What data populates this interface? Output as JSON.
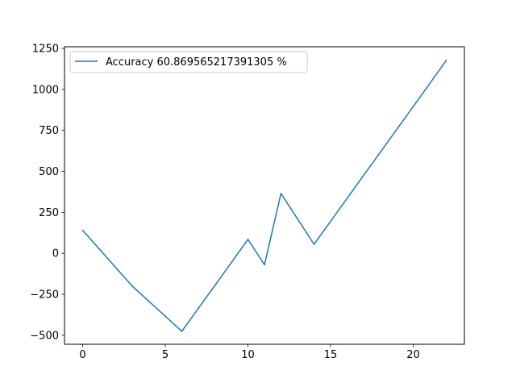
{
  "chart_data": {
    "type": "line",
    "title": "",
    "xlabel": "",
    "ylabel": "",
    "xlim": [
      -1.1,
      23.1
    ],
    "ylim": [
      -555,
      1260
    ],
    "x_ticks": [
      0,
      5,
      10,
      15,
      20
    ],
    "y_ticks": [
      -500,
      -250,
      0,
      250,
      500,
      750,
      1000,
      1250
    ],
    "x_tick_labels": [
      "0",
      "5",
      "10",
      "15",
      "20"
    ],
    "y_tick_labels": [
      "−500",
      "−250",
      "0",
      "250",
      "500",
      "750",
      "1000",
      "1250"
    ],
    "grid": false,
    "legend_position": "top-left",
    "series": [
      {
        "name": "Accuracy 60.869565217391305 %",
        "color": "#1f77b4",
        "x": [
          0,
          1,
          2,
          3,
          4,
          5,
          6,
          7,
          8,
          9,
          10,
          11,
          12,
          13,
          14,
          15,
          16,
          17,
          18,
          19,
          20,
          21,
          22
        ],
        "y": [
          140,
          27,
          -87,
          -200,
          -292,
          -384,
          -476,
          -336,
          -196,
          -56,
          85,
          -70,
          365,
          210,
          55,
          195,
          335,
          475,
          615,
          755,
          895,
          1035,
          1177
        ]
      }
    ]
  }
}
